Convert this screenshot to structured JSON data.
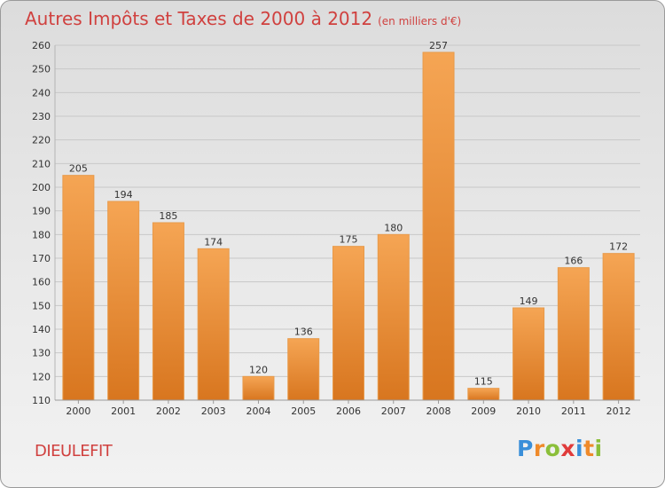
{
  "header": {
    "title": "Autres Impôts et Taxes de 2000 à 2012",
    "unit": "(en milliers d'€)"
  },
  "footer": {
    "place": "DIEULEFIT",
    "logo": {
      "letters": [
        "P",
        "r",
        "o",
        "x",
        "i",
        "t",
        "i"
      ],
      "colors": [
        "#3a8fd9",
        "#ef8a2a",
        "#8bbf3a",
        "#e03b3b",
        "#3a8fd9",
        "#ef8a2a",
        "#8bbf3a"
      ]
    }
  },
  "colors": {
    "bar_top": "#f5a554",
    "bar_bottom": "#d8761f",
    "grid": "#c8c8c8",
    "axis_text": "#333333"
  },
  "chart_data": {
    "type": "bar",
    "categories": [
      "2000",
      "2001",
      "2002",
      "2003",
      "2004",
      "2005",
      "2006",
      "2007",
      "2008",
      "2009",
      "2010",
      "2011",
      "2012"
    ],
    "values": [
      205,
      194,
      185,
      174,
      120,
      136,
      175,
      180,
      257,
      115,
      149,
      166,
      172
    ],
    "ylim": [
      110,
      260
    ],
    "yticks": [
      110,
      120,
      130,
      140,
      150,
      160,
      170,
      180,
      190,
      200,
      210,
      220,
      230,
      240,
      250,
      260
    ],
    "grid": true,
    "data_labels": true
  }
}
